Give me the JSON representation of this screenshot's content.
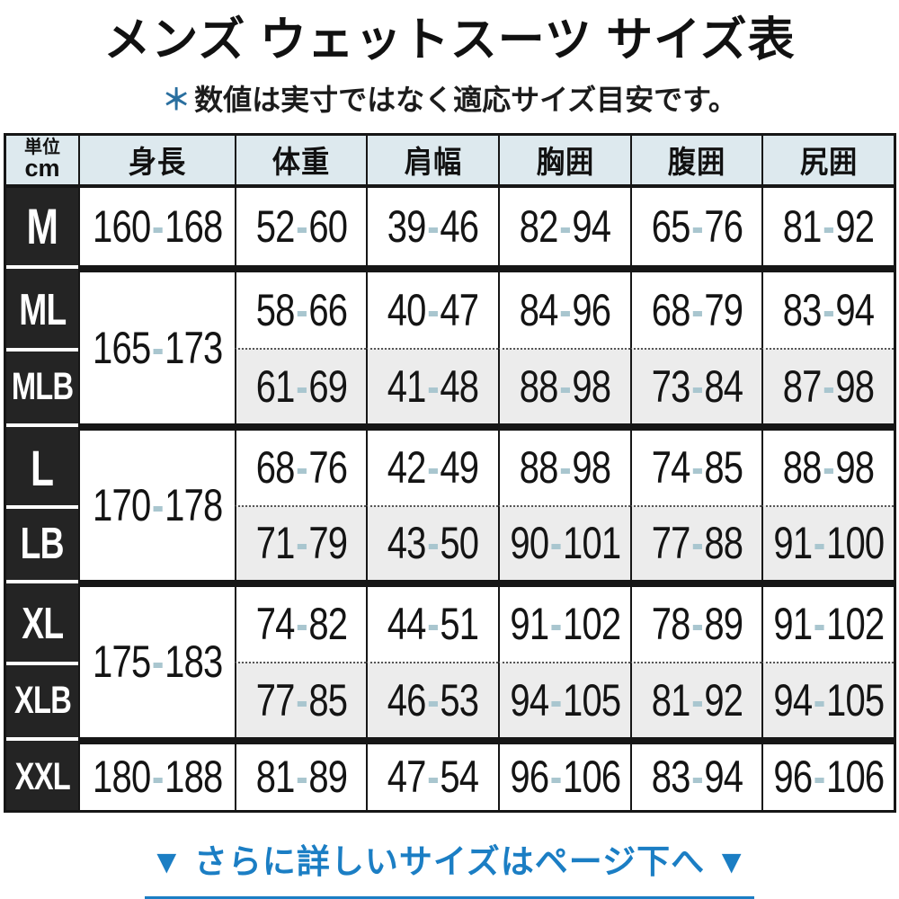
{
  "title": "メンズ ウェットスーツ サイズ表",
  "note": {
    "marker": "＊",
    "text": "数値は実寸ではなく適応サイズ目安です。"
  },
  "table": {
    "unit_top": "単位",
    "unit_bottom": "cm",
    "dash": "-",
    "columns": [
      "身長",
      "体重",
      "肩幅",
      "胸囲",
      "腹囲",
      "尻囲"
    ],
    "groups": [
      {
        "height": {
          "min": "160",
          "max": "168"
        },
        "rows": [
          {
            "size": "M",
            "cells": [
              {
                "min": "52",
                "max": "60"
              },
              {
                "min": "39",
                "max": "46"
              },
              {
                "min": "82",
                "max": "94"
              },
              {
                "min": "65",
                "max": "76"
              },
              {
                "min": "81",
                "max": "92"
              }
            ]
          }
        ]
      },
      {
        "height": {
          "min": "165",
          "max": "173"
        },
        "rows": [
          {
            "size": "ML",
            "cells": [
              {
                "min": "58",
                "max": "66"
              },
              {
                "min": "40",
                "max": "47"
              },
              {
                "min": "84",
                "max": "96"
              },
              {
                "min": "68",
                "max": "79"
              },
              {
                "min": "83",
                "max": "94"
              }
            ]
          },
          {
            "size": "MLB",
            "cells": [
              {
                "min": "61",
                "max": "69"
              },
              {
                "min": "41",
                "max": "48"
              },
              {
                "min": "88",
                "max": "98"
              },
              {
                "min": "73",
                "max": "84"
              },
              {
                "min": "87",
                "max": "98"
              }
            ]
          }
        ]
      },
      {
        "height": {
          "min": "170",
          "max": "178"
        },
        "rows": [
          {
            "size": "L",
            "cells": [
              {
                "min": "68",
                "max": "76"
              },
              {
                "min": "42",
                "max": "49"
              },
              {
                "min": "88",
                "max": "98"
              },
              {
                "min": "74",
                "max": "85"
              },
              {
                "min": "88",
                "max": "98"
              }
            ]
          },
          {
            "size": "LB",
            "cells": [
              {
                "min": "71",
                "max": "79"
              },
              {
                "min": "43",
                "max": "50"
              },
              {
                "min": "90",
                "max": "101"
              },
              {
                "min": "77",
                "max": "88"
              },
              {
                "min": "91",
                "max": "100"
              }
            ]
          }
        ]
      },
      {
        "height": {
          "min": "175",
          "max": "183"
        },
        "rows": [
          {
            "size": "XL",
            "cells": [
              {
                "min": "74",
                "max": "82"
              },
              {
                "min": "44",
                "max": "51"
              },
              {
                "min": "91",
                "max": "102"
              },
              {
                "min": "78",
                "max": "89"
              },
              {
                "min": "91",
                "max": "102"
              }
            ]
          },
          {
            "size": "XLB",
            "cells": [
              {
                "min": "77",
                "max": "85"
              },
              {
                "min": "46",
                "max": "53"
              },
              {
                "min": "94",
                "max": "105"
              },
              {
                "min": "81",
                "max": "92"
              },
              {
                "min": "94",
                "max": "105"
              }
            ]
          }
        ]
      },
      {
        "height": {
          "min": "180",
          "max": "188"
        },
        "rows": [
          {
            "size": "XXL",
            "cells": [
              {
                "min": "81",
                "max": "89"
              },
              {
                "min": "47",
                "max": "54"
              },
              {
                "min": "96",
                "max": "106"
              },
              {
                "min": "83",
                "max": "94"
              },
              {
                "min": "96",
                "max": "106"
              }
            ]
          }
        ]
      }
    ]
  },
  "footer": {
    "text": "▼ さらに詳しいサイズはページ下へ ▼"
  },
  "colors": {
    "header_bg": "#dde9ee",
    "label_bg": "#242424",
    "alt_row_bg": "#ececec",
    "range_dash": "#a9c6cf",
    "link_blue": "#1b7ec4",
    "note_marker_blue": "#2a6f9f"
  }
}
